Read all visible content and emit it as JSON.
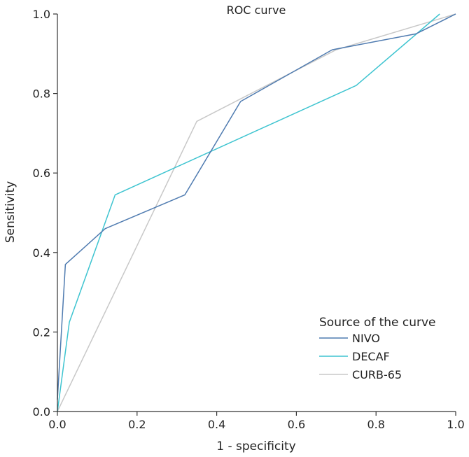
{
  "chart_data": {
    "type": "line",
    "title": "ROC curve",
    "xlabel": "1 - specificity",
    "ylabel": "Sensitivity",
    "xlim": [
      0,
      1
    ],
    "ylim": [
      0,
      1
    ],
    "xticks": [
      "0.0",
      "0.2",
      "0.4",
      "0.6",
      "0.8",
      "1.0"
    ],
    "yticks": [
      "0.0",
      "0.2",
      "0.4",
      "0.6",
      "0.8",
      "1.0"
    ],
    "legend": {
      "title": "Source of the curve",
      "position": "bottom-right"
    },
    "series": [
      {
        "name": "NIVO",
        "color": "#4f7bb0",
        "points": [
          [
            0,
            0.03
          ],
          [
            0.02,
            0.37
          ],
          [
            0.12,
            0.46
          ],
          [
            0.32,
            0.545
          ],
          [
            0.46,
            0.78
          ],
          [
            0.69,
            0.91
          ],
          [
            0.9,
            0.95
          ],
          [
            1.0,
            1.0
          ]
        ]
      },
      {
        "name": "DECAF",
        "color": "#3ec4d0",
        "points": [
          [
            0,
            0
          ],
          [
            0.03,
            0.225
          ],
          [
            0.145,
            0.545
          ],
          [
            0.75,
            0.82
          ],
          [
            0.96,
            1.0
          ]
        ]
      },
      {
        "name": "CURB-65",
        "color": "#c8c8c8",
        "points": [
          [
            0,
            0
          ],
          [
            0.35,
            0.73
          ],
          [
            0.7,
            0.91
          ],
          [
            1.0,
            1.0
          ]
        ]
      }
    ]
  }
}
